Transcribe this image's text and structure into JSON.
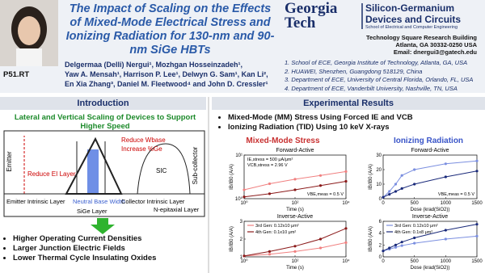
{
  "header": {
    "title": "The Impact of Scaling on the Effects of Mixed-Mode Electrical Stress and Ionizing Radiation for 130-nm and 90-nm SiGe HBTs",
    "poster_id": "P51.RT",
    "authors": [
      "Delgermaa (Delli) Nergui¹, Mozhgan Hosseinzadeh¹,",
      "Yaw A. Mensah¹, Harrison P. Lee¹, Delwyn G. Sam¹, Kan Li²,",
      "En Xia Zhang³, Daniel M. Fleetwood⁴ and John D. Cressler¹"
    ],
    "logo": {
      "line1": "Georgia",
      "line2": "Tech",
      "group": "Silicon-Germanium Devices and Circuits",
      "school": "School of Electrical and Computer Engineering"
    },
    "address": [
      "Technology Square Research Building",
      "Atlanta, GA 30332-0250 USA",
      "Email: dnergui3@gatech.edu"
    ],
    "affiliations": [
      "1. School of ECE, Georgia Institute of Technology, Atlanta, GA, USA",
      "2. HUAWEI, Shenzhen, Guangdong 518129, China",
      "3. Department of ECE, University of Central Florida, Orlando, FL, USA",
      "4. Department of ECE, Vanderbilt University, Nashville, TN, USA"
    ]
  },
  "introduction": {
    "heading": "Introduction",
    "subtitle": "Lateral and Vertical Scaling of Devices to Support Higher Speed",
    "diagram": {
      "reduce_wbase": "Reduce Wbase",
      "increase_ge": "Increase %Ge",
      "emitter": "Emitter",
      "reduce_ei": "Reduce EI Layer",
      "sic": "SIC",
      "sub_collector": "Sub-collector",
      "emitter_intrinsic": "Emitter Intrinsic Layer",
      "neutral_base": "Neutral Base Width",
      "collector_intrinsic": "Collector Intrinsic Layer",
      "n_epi": "N-epitaxial Layer",
      "sige": "SiGe Layer"
    },
    "bullets": [
      "Higher Operating Current Densities",
      "Larger Junction Electric Fields",
      "Lower Thermal Cycle Insulating Oxides"
    ]
  },
  "results": {
    "heading": "Experimental Results",
    "bullets": [
      "Mixed-Mode (MM) Stress Using Forced IE and VCB",
      "Ionizing Radiation (TID) Using 10 keV X-rays"
    ],
    "mixed_mode": {
      "heading": "Mixed-Mode Stress",
      "plots": [
        {
          "title": "Forward-Active",
          "xlabel": "Time (s)",
          "ylabel": "IB/IB0 (A/A)",
          "log_x": true,
          "log_y": true,
          "xlim": [
            1,
            10000
          ],
          "ylim": [
            1,
            10
          ],
          "xticks": [
            {
              "value": 1,
              "label": "10⁰"
            },
            {
              "value": 100,
              "label": "10²"
            },
            {
              "value": 10000,
              "label": "10⁴"
            }
          ],
          "yticks": [
            {
              "value": 1,
              "label": "10⁰"
            },
            {
              "value": 10,
              "label": "10¹"
            }
          ],
          "stress_conditions": [
            "IE,stress = 500 μA/μm²",
            "VCB,stress = 2.96 V"
          ],
          "measurement": "VBE,meas = 0.5 V",
          "series": [
            {
              "color": "#f08080",
              "x": [
                1,
                10,
                100,
                1000,
                10000
              ],
              "values": [
                1.6,
                2.2,
                2.8,
                3.4,
                4.2
              ]
            },
            {
              "color": "#8b1a1a",
              "x": [
                1,
                10,
                100,
                1000,
                10000
              ],
              "values": [
                1.1,
                1.3,
                1.6,
                2.0,
                2.5
              ]
            }
          ]
        },
        {
          "title": "Inverse-Active",
          "xlabel": "Time (s)",
          "ylabel": "IB/IB0 (A/A)",
          "log_x": true,
          "log_y": false,
          "xlim": [
            1,
            10000
          ],
          "ylim": [
            1,
            3
          ],
          "xticks": [
            {
              "value": 1,
              "label": "10⁰"
            },
            {
              "value": 100,
              "label": "10²"
            },
            {
              "value": 10000,
              "label": "10⁴"
            }
          ],
          "yticks": [
            1,
            2,
            3
          ],
          "legend": "upper left",
          "series": [
            {
              "name": "3rd Gen: 0.12x10 μm²",
              "color": "#f08080",
              "x": [
                1,
                10,
                100,
                1000,
                10000
              ],
              "values": [
                1.05,
                1.15,
                1.3,
                1.5,
                1.8
              ]
            },
            {
              "name": "4th Gen: 0.1x10 μm²",
              "color": "#8b1a1a",
              "x": [
                1,
                10,
                100,
                1000,
                10000
              ],
              "values": [
                1.05,
                1.3,
                1.6,
                2.0,
                2.6
              ]
            }
          ]
        }
      ]
    },
    "ionizing": {
      "heading": "Ionizing Radiation",
      "plots": [
        {
          "title": "Forward-Active",
          "xlabel": "Dose (krad(SiO2))",
          "ylabel": "IB/IB0 (A/A)",
          "log_x": false,
          "log_y": false,
          "xlim": [
            0,
            1500
          ],
          "ylim": [
            0,
            30
          ],
          "xticks": [
            0,
            500,
            1000,
            1500
          ],
          "yticks": [
            0,
            10,
            20,
            30
          ],
          "measurement": "VBE,meas = 0.5 V",
          "series": [
            {
              "color": "#7b8fe0",
              "x": [
                0,
                100,
                200,
                300,
                500,
                1000,
                1500
              ],
              "values": [
                1,
                5,
                10,
                16,
                20,
                24,
                26
              ]
            },
            {
              "color": "#1a2a7a",
              "x": [
                0,
                100,
                200,
                300,
                500,
                1000,
                1500
              ],
              "values": [
                1,
                3,
                5,
                7,
                10,
                15,
                19
              ]
            }
          ]
        },
        {
          "title": "Inverse-Active",
          "xlabel": "Dose (krad(SiO2))",
          "ylabel": "IB/IB0 (A/A)",
          "log_x": false,
          "log_y": false,
          "xlim": [
            0,
            1500
          ],
          "ylim": [
            0,
            6
          ],
          "xticks": [
            0,
            500,
            1000,
            1500
          ],
          "yticks": [
            0,
            2,
            4,
            6
          ],
          "legend": "upper left",
          "series": [
            {
              "name": "3rd Gen: 0.12x10 μm²",
              "color": "#7b8fe0",
              "x": [
                0,
                100,
                200,
                300,
                500,
                1000,
                1500
              ],
              "values": [
                1,
                1.3,
                1.6,
                1.9,
                2.3,
                3.0,
                3.5
              ]
            },
            {
              "name": "4th Gen: 0.1x8 μm²",
              "color": "#1a2a7a",
              "x": [
                0,
                100,
                200,
                300,
                500,
                1000,
                1500
              ],
              "values": [
                1,
                1.5,
                2,
                2.5,
                3.2,
                4.5,
                5.5
              ]
            }
          ]
        }
      ]
    }
  }
}
